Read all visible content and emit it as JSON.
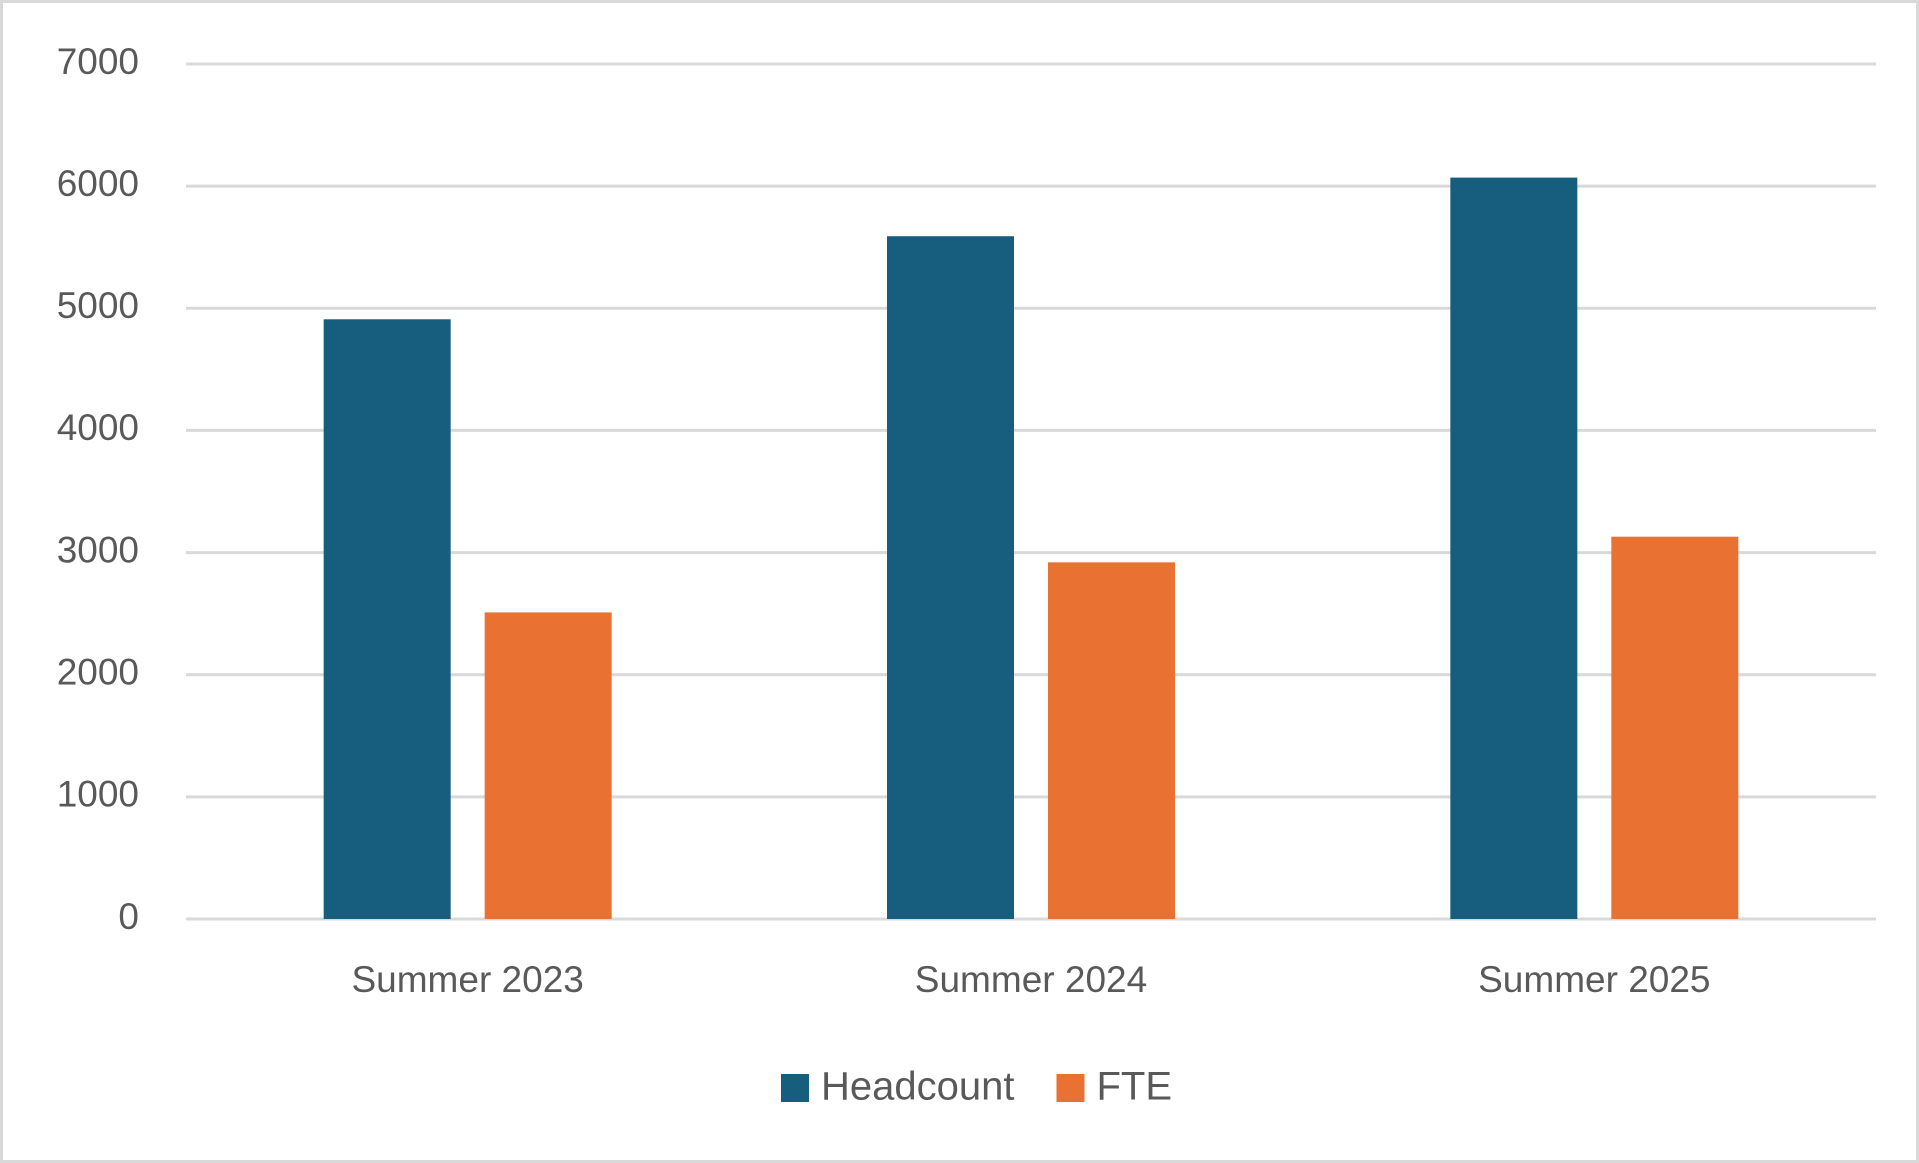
{
  "chart_data": {
    "type": "bar",
    "categories": [
      "Summer 2023",
      "Summer 2024",
      "Summer 2025"
    ],
    "series": [
      {
        "name": "Headcount",
        "color": "#175e7e",
        "values": [
          4910,
          5590,
          6070
        ]
      },
      {
        "name": "FTE",
        "color": "#e97132",
        "values": [
          2510,
          2920,
          3130
        ]
      }
    ],
    "ylim": [
      0,
      7000
    ],
    "yticks": [
      0,
      1000,
      2000,
      3000,
      4000,
      5000,
      6000,
      7000
    ],
    "grid": true,
    "legend": "bottom"
  }
}
